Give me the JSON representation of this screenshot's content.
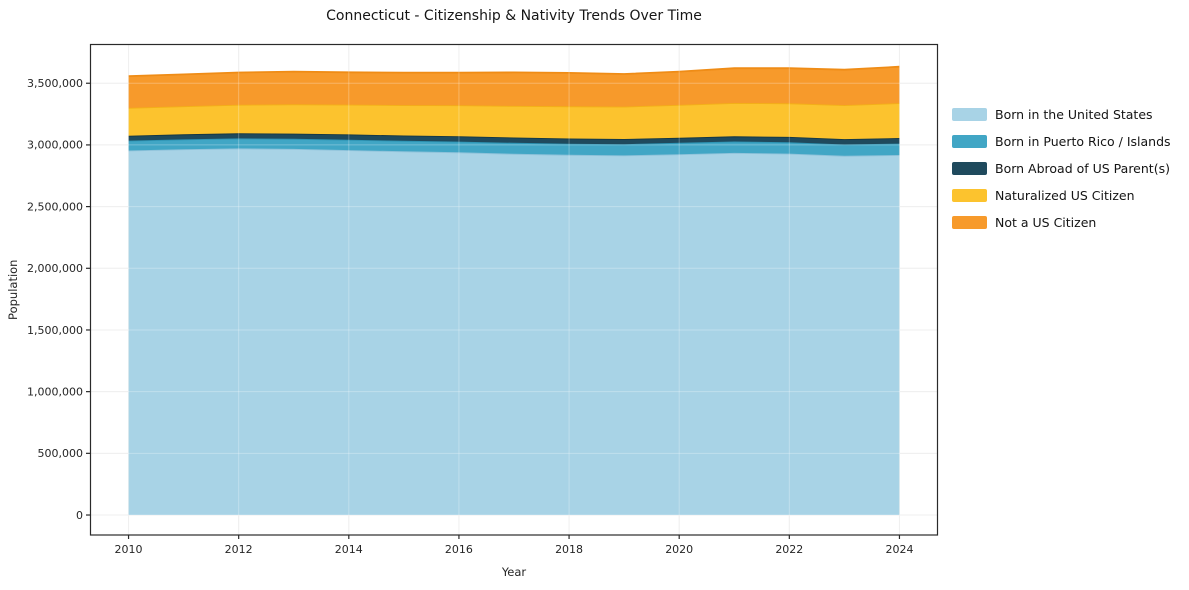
{
  "chart_data": {
    "type": "area",
    "stacked": true,
    "title": "Connecticut - Citizenship & Nativity Trends Over Time",
    "xlabel": "Year",
    "ylabel": "Population",
    "grid": true,
    "legend_position": "right",
    "x": [
      2010,
      2011,
      2012,
      2013,
      2014,
      2015,
      2016,
      2017,
      2018,
      2019,
      2020,
      2021,
      2022,
      2023,
      2024
    ],
    "series": [
      {
        "name": "Born in the United States",
        "color": "#a8d3e6",
        "line_color": "#8ec2da",
        "values": [
          2955000,
          2965000,
          2972000,
          2968000,
          2958000,
          2948000,
          2940000,
          2928000,
          2920000,
          2915000,
          2925000,
          2935000,
          2930000,
          2912000,
          2918000
        ]
      },
      {
        "name": "Born in Puerto Rico / Islands",
        "color": "#41a6c5",
        "line_color": "#2d93b3",
        "values": [
          80000,
          80000,
          81000,
          82000,
          84000,
          85000,
          87000,
          89000,
          90000,
          91000,
          92000,
          93000,
          92000,
          91000,
          93000
        ]
      },
      {
        "name": "Born Abroad of US Parent(s)",
        "color": "#1f4a5d",
        "line_color": "#163744",
        "values": [
          40000,
          41000,
          41000,
          42000,
          43000,
          43000,
          44000,
          43000,
          42000,
          42000,
          41000,
          42000,
          43000,
          44000,
          45000
        ]
      },
      {
        "name": "Naturalized US Citizen",
        "color": "#fcc32e",
        "line_color": "#f3b017",
        "values": [
          225000,
          228000,
          232000,
          237000,
          242000,
          247000,
          251000,
          256000,
          261000,
          263000,
          266000,
          270000,
          272000,
          276000,
          283000
        ]
      },
      {
        "name": "Not a US Citizen",
        "color": "#f79a2b",
        "line_color": "#ef8c16",
        "values": [
          258000,
          258000,
          261000,
          265000,
          262000,
          263000,
          264000,
          272000,
          271000,
          264000,
          270000,
          282000,
          285000,
          287000,
          295000
        ]
      }
    ],
    "xlim": [
      2009.3,
      2024.7
    ],
    "ylim": [
      -162000,
      3814000
    ],
    "x_ticks": [
      {
        "value": 2010,
        "label": "2010"
      },
      {
        "value": 2012,
        "label": "2012"
      },
      {
        "value": 2014,
        "label": "2014"
      },
      {
        "value": 2016,
        "label": "2016"
      },
      {
        "value": 2018,
        "label": "2018"
      },
      {
        "value": 2020,
        "label": "2020"
      },
      {
        "value": 2022,
        "label": "2022"
      },
      {
        "value": 2024,
        "label": "2024"
      }
    ],
    "y_ticks": [
      {
        "value": 0,
        "label": "0"
      },
      {
        "value": 500000,
        "label": "500,000"
      },
      {
        "value": 1000000,
        "label": "1,000,000"
      },
      {
        "value": 1500000,
        "label": "1,500,000"
      },
      {
        "value": 2000000,
        "label": "2,000,000"
      },
      {
        "value": 2500000,
        "label": "2,500,000"
      },
      {
        "value": 3000000,
        "label": "3,000,000"
      },
      {
        "value": 3500000,
        "label": "3,500,000"
      }
    ]
  },
  "style_colors": {
    "spine": "#2a2a2a",
    "grid_under": "#e9e9e9",
    "grid_over": "rgba(255,255,255,0.28)",
    "tick_text": "#262626"
  }
}
